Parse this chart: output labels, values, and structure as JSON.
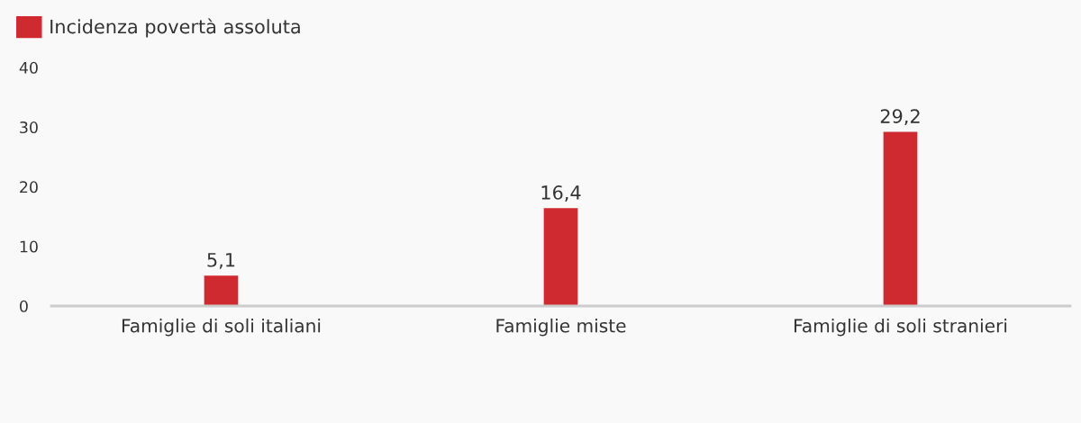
{
  "chart_data": {
    "type": "bar",
    "categories": [
      "Famiglie di soli italiani",
      "Famiglie miste",
      "Famiglie di soli stranieri"
    ],
    "series": [
      {
        "name": "Incidenza povertà assoluta",
        "color": "#cf2a2f",
        "values": [
          5.1,
          16.4,
          29.2
        ],
        "value_labels": [
          "5,1",
          "16,4",
          "29,2"
        ]
      }
    ],
    "ylim": [
      0,
      40
    ],
    "yticks": [
      0,
      10,
      20,
      30,
      40
    ],
    "grid": false,
    "legend": "top left"
  }
}
